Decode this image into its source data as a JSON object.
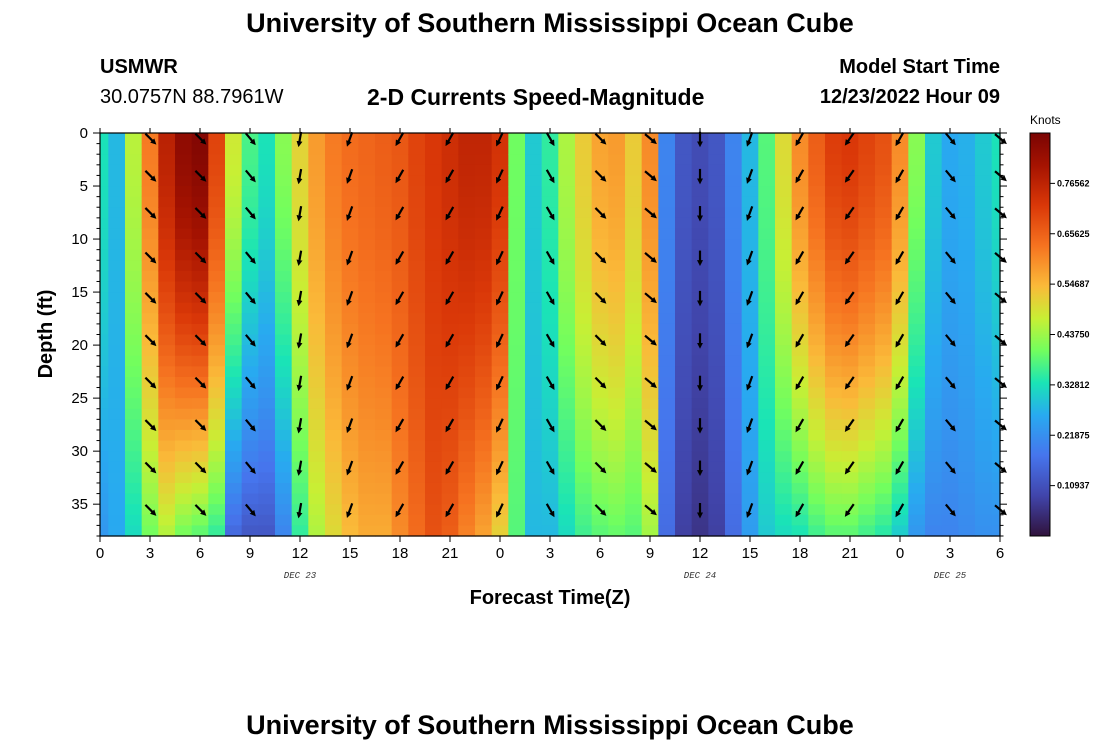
{
  "header": {
    "title": "University of Southern Mississippi Ocean Cube",
    "station": "USMWR",
    "coords": "30.0757N  88.7961W",
    "subtitle": "2-D Currents Speed-Magnitude",
    "model_start_label": "Model Start Time",
    "model_start_value": "12/23/2022 Hour 09",
    "footer_title": "University of Southern Mississippi Ocean Cube"
  },
  "colorbar": {
    "title": "Knots",
    "tick_labels": [
      "0.76562",
      "0.65625",
      "0.54687",
      "0.43750",
      "0.32812",
      "0.21875",
      "0.10937"
    ],
    "tick_values": [
      0.765625,
      0.65625,
      0.546875,
      0.4375,
      0.328125,
      0.21875,
      0.109375
    ],
    "range": [
      0,
      0.875
    ]
  },
  "chart_data": {
    "type": "heatmap",
    "title": "2-D Currents Speed-Magnitude",
    "xlabel": "Forecast Time(Z)",
    "ylabel": "Depth (ft)",
    "x_range": [
      0,
      54
    ],
    "y_range": [
      0,
      38
    ],
    "y_inverted": true,
    "x_ticks": [
      {
        "value": 0,
        "label": "0"
      },
      {
        "value": 3,
        "label": "3"
      },
      {
        "value": 6,
        "label": "6"
      },
      {
        "value": 9,
        "label": "9"
      },
      {
        "value": 12,
        "label": "12"
      },
      {
        "value": 15,
        "label": "15"
      },
      {
        "value": 18,
        "label": "18"
      },
      {
        "value": 21,
        "label": "21"
      },
      {
        "value": 24,
        "label": "0"
      },
      {
        "value": 27,
        "label": "3"
      },
      {
        "value": 30,
        "label": "6"
      },
      {
        "value": 33,
        "label": "9"
      },
      {
        "value": 36,
        "label": "12"
      },
      {
        "value": 39,
        "label": "15"
      },
      {
        "value": 42,
        "label": "18"
      },
      {
        "value": 45,
        "label": "21"
      },
      {
        "value": 48,
        "label": "0"
      },
      {
        "value": 51,
        "label": "3"
      },
      {
        "value": 54,
        "label": "6"
      }
    ],
    "y_ticks": [
      0,
      5,
      10,
      15,
      20,
      25,
      30,
      35
    ],
    "date_labels": [
      {
        "value": 12,
        "label": "DEC 23"
      },
      {
        "value": 36,
        "label": "DEC 24"
      },
      {
        "value": 51,
        "label": "DEC 25"
      }
    ],
    "speed_units": "knots",
    "time_columns": [
      0,
      1,
      2,
      3,
      4,
      5,
      6,
      7,
      8,
      9,
      10,
      11,
      12,
      13,
      14,
      15,
      16,
      17,
      18,
      19,
      20,
      21,
      22,
      23,
      24,
      25,
      26,
      27,
      28,
      29,
      30,
      31,
      32,
      33,
      34,
      35,
      36,
      37,
      38,
      39,
      40,
      41,
      42,
      43,
      44,
      45,
      46,
      47,
      48,
      49,
      50,
      51,
      52,
      53,
      54
    ],
    "surface_speed": [
      0.33,
      0.28,
      0.46,
      0.62,
      0.77,
      0.84,
      0.86,
      0.7,
      0.48,
      0.37,
      0.33,
      0.42,
      0.51,
      0.58,
      0.62,
      0.64,
      0.65,
      0.66,
      0.67,
      0.7,
      0.72,
      0.74,
      0.76,
      0.76,
      0.73,
      0.4,
      0.3,
      0.35,
      0.45,
      0.52,
      0.57,
      0.58,
      0.52,
      0.6,
      0.2,
      0.12,
      0.1,
      0.12,
      0.2,
      0.28,
      0.38,
      0.5,
      0.6,
      0.66,
      0.71,
      0.72,
      0.7,
      0.68,
      0.6,
      0.42,
      0.3,
      0.26,
      0.27,
      0.3,
      0.33
    ],
    "bottom_speed": [
      0.23,
      0.26,
      0.32,
      0.4,
      0.45,
      0.4,
      0.38,
      0.35,
      0.15,
      0.12,
      0.12,
      0.2,
      0.35,
      0.45,
      0.5,
      0.54,
      0.56,
      0.56,
      0.6,
      0.64,
      0.68,
      0.66,
      0.61,
      0.57,
      0.51,
      0.38,
      0.28,
      0.28,
      0.32,
      0.36,
      0.38,
      0.39,
      0.38,
      0.44,
      0.16,
      0.08,
      0.06,
      0.08,
      0.16,
      0.24,
      0.3,
      0.32,
      0.33,
      0.36,
      0.38,
      0.38,
      0.36,
      0.34,
      0.3,
      0.23,
      0.2,
      0.2,
      0.21,
      0.22,
      0.22
    ],
    "arrow_times": [
      3,
      6,
      9,
      12,
      15,
      18,
      21,
      24,
      27,
      30,
      33,
      36,
      39,
      42,
      45,
      48,
      51,
      54
    ],
    "arrow_depths": [
      0.5,
      4,
      7.5,
      11.7,
      15.5,
      19.5,
      23.5,
      27.5,
      31.5,
      35.5
    ],
    "arrow_direction_deg": [
      135,
      135,
      140,
      190,
      200,
      210,
      210,
      205,
      150,
      135,
      130,
      180,
      200,
      210,
      215,
      210,
      140,
      130
    ]
  }
}
